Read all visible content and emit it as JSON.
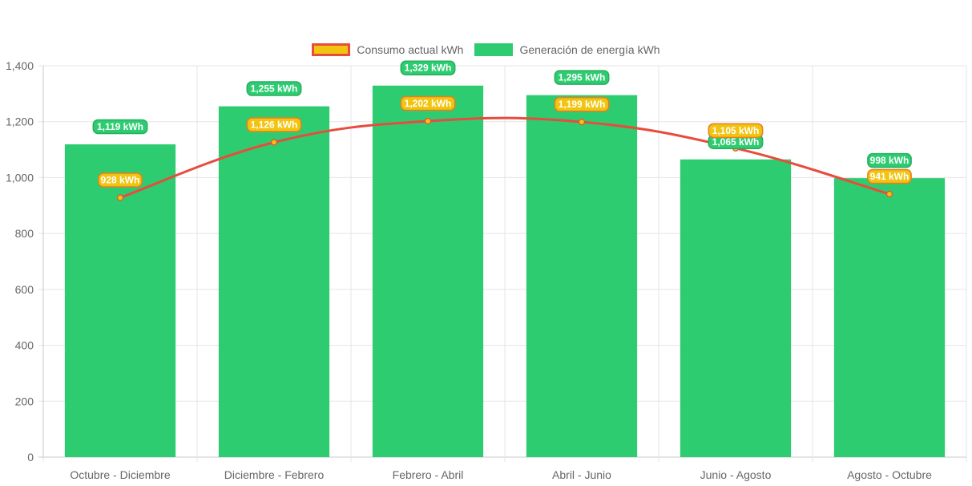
{
  "chart_data": {
    "type": "bar",
    "title": "",
    "xlabel": "",
    "ylabel": "",
    "categories": [
      "Octubre - Diciembre",
      "Diciembre - Febrero",
      "Febrero - Abril",
      "Abril - Junio",
      "Junio - Agosto",
      "Agosto - Octubre"
    ],
    "ylim": [
      0,
      1400
    ],
    "yticks": [
      0,
      200,
      400,
      600,
      800,
      1000,
      1200,
      1400
    ],
    "ytick_labels": [
      "0",
      "200",
      "400",
      "600",
      "800",
      "1,000",
      "1,200",
      "1,400"
    ],
    "grid": true,
    "legend_position": "top-center",
    "series": [
      {
        "name": "Consumo actual kWh",
        "type": "line",
        "color": "#e74c3c",
        "fill_color": "#f1c40f",
        "values": [
          928,
          1126,
          1202,
          1199,
          1105,
          941
        ],
        "labels": [
          "928 kWh",
          "1,126 kWh",
          "1,202 kWh",
          "1,199 kWh",
          "1,105 kWh",
          "941 kWh"
        ]
      },
      {
        "name": "Generación de energía kWh",
        "type": "bar",
        "color": "#2ecc71",
        "values": [
          1119,
          1255,
          1329,
          1295,
          1065,
          998
        ],
        "labels": [
          "1,119 kWh",
          "1,255 kWh",
          "1,329 kWh",
          "1,295 kWh",
          "1,065 kWh",
          "998 kWh"
        ]
      }
    ]
  }
}
